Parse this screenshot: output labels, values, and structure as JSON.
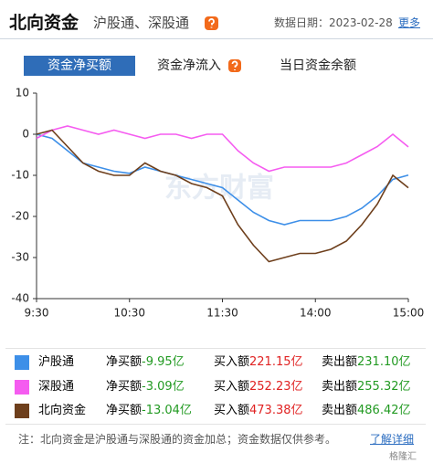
{
  "header": {
    "title": "北向资金",
    "subtitle": "沪股通、深股通",
    "date": "数据日期：2023-02-28",
    "more": "更多"
  },
  "tabs": [
    "资金净买额",
    "资金净流入",
    "当日资金余额"
  ],
  "chart_data": {
    "type": "line",
    "categories": [
      "9:30",
      null,
      null,
      null,
      null,
      null,
      "10:30",
      null,
      null,
      null,
      null,
      null,
      "11:30",
      null,
      null,
      null,
      null,
      null,
      "14:00",
      null,
      null,
      null,
      null,
      null,
      "15:00"
    ],
    "ylim": [
      -40,
      10
    ],
    "yticks": [
      10,
      0,
      -10,
      -20,
      -30,
      -40
    ],
    "grid": false,
    "watermark": "东方财富",
    "series": [
      {
        "name": "沪股通",
        "color": "#3d8fe8",
        "values": [
          0,
          -1,
          -4,
          -7,
          -8,
          -9,
          -9.5,
          -8,
          -9,
          -10,
          -11,
          -12,
          -13,
          -16,
          -19,
          -21,
          -22,
          -21,
          -21,
          -21,
          -20,
          -18,
          -15,
          -11,
          -9.95
        ]
      },
      {
        "name": "深股通",
        "color": "#f55cf0",
        "values": [
          -1,
          1,
          2,
          1,
          0,
          1,
          0,
          -1,
          0,
          0,
          -1,
          0,
          0,
          -4,
          -7,
          -9,
          -8,
          -8,
          -8,
          -8,
          -7,
          -5,
          -3,
          0,
          -3.09
        ]
      },
      {
        "name": "北向资金",
        "color": "#6e3f1c",
        "values": [
          0,
          1,
          -3,
          -7,
          -9,
          -10,
          -10,
          -7,
          -9,
          -10,
          -12,
          -13,
          -15,
          -22,
          -27,
          -31,
          -30,
          -29,
          -29,
          -28,
          -26,
          -22,
          -17,
          -10,
          -13.04
        ]
      }
    ]
  },
  "summary": [
    {
      "net_label": "净买额",
      "net": "-9.95亿",
      "buy_label": "买入额",
      "buy": "221.15亿",
      "sell_label": "卖出额",
      "sell": "231.10亿"
    },
    {
      "net_label": "净买额",
      "net": "-3.09亿",
      "buy_label": "买入额",
      "buy": "252.23亿",
      "sell_label": "卖出额",
      "sell": "255.32亿"
    },
    {
      "net_label": "净买额",
      "net": "-13.04亿",
      "buy_label": "买入额",
      "buy": "473.38亿",
      "sell_label": "卖出额",
      "sell": "486.42亿"
    }
  ],
  "note": "注：北向资金是沪股通与深股通的资金加总；资金数据仅供参考。",
  "detail_link": "了解详细",
  "brand": "格隆汇"
}
